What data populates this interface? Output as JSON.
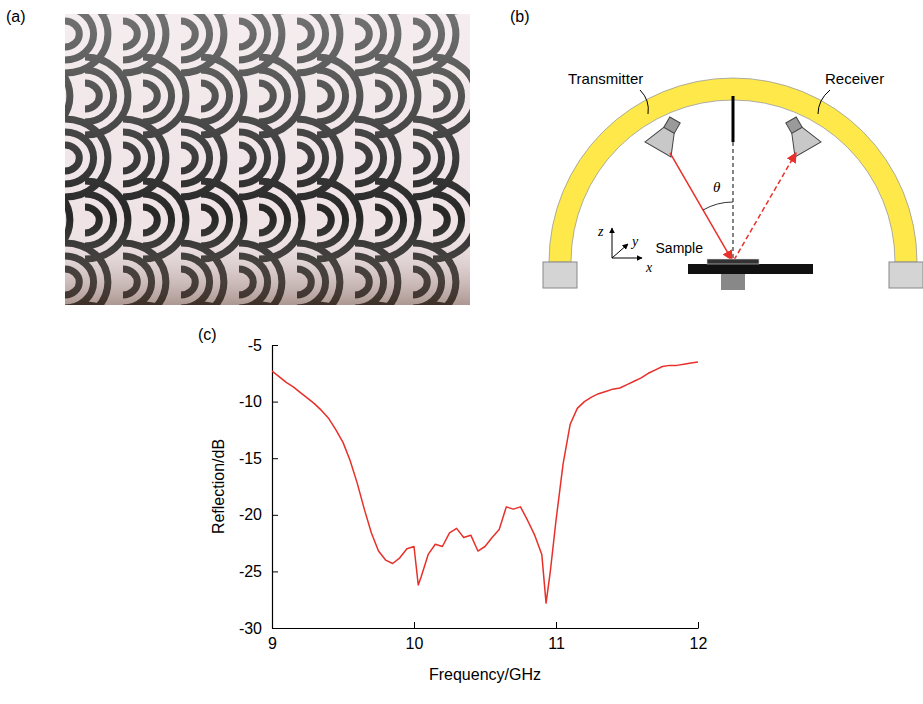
{
  "figure": {
    "panel_labels": [
      "(a)",
      "(b)",
      "(c)"
    ]
  },
  "diagram": {
    "transmitter": "Transmitter",
    "receiver": "Receiver",
    "angle": "θ",
    "sample": "Sample",
    "axes": [
      "x",
      "y",
      "z"
    ]
  },
  "chart_data": {
    "type": "line",
    "x_label": "Frequency/GHz",
    "y_label": "Reflection/dB",
    "color": "#e8302a",
    "xlim": [
      9,
      12
    ],
    "xticks": [
      9,
      10,
      11,
      12
    ],
    "ylim": [
      -30,
      -5
    ],
    "yticks": [
      -30,
      -25,
      -20,
      -15,
      -10,
      -5
    ],
    "x": [
      9.0,
      9.05,
      9.1,
      9.15,
      9.2,
      9.25,
      9.3,
      9.35,
      9.4,
      9.45,
      9.5,
      9.55,
      9.6,
      9.65,
      9.7,
      9.75,
      9.8,
      9.85,
      9.9,
      9.95,
      10.0,
      10.03,
      10.05,
      10.1,
      10.15,
      10.2,
      10.25,
      10.3,
      10.35,
      10.4,
      10.45,
      10.5,
      10.55,
      10.6,
      10.65,
      10.7,
      10.75,
      10.8,
      10.85,
      10.9,
      10.93,
      10.96,
      11.0,
      11.05,
      11.1,
      11.15,
      11.2,
      11.25,
      11.3,
      11.35,
      11.4,
      11.45,
      11.5,
      11.55,
      11.6,
      11.65,
      11.7,
      11.75,
      11.8,
      11.85,
      11.9,
      11.95,
      12.0
    ],
    "values": [
      -7.3,
      -7.8,
      -8.3,
      -8.7,
      -9.2,
      -9.7,
      -10.2,
      -10.8,
      -11.5,
      -12.5,
      -13.6,
      -15.2,
      -17.2,
      -19.5,
      -21.6,
      -23.2,
      -24.0,
      -24.3,
      -23.8,
      -23.0,
      -22.8,
      -26.2,
      -25.5,
      -23.5,
      -22.6,
      -22.8,
      -21.6,
      -21.2,
      -22.0,
      -21.8,
      -23.2,
      -22.8,
      -22.0,
      -21.3,
      -19.3,
      -19.5,
      -19.3,
      -20.5,
      -21.8,
      -23.5,
      -27.8,
      -25.0,
      -20.5,
      -15.5,
      -12.0,
      -10.6,
      -10.0,
      -9.6,
      -9.3,
      -9.1,
      -8.9,
      -8.8,
      -8.5,
      -8.2,
      -7.9,
      -7.5,
      -7.2,
      -6.9,
      -6.8,
      -6.8,
      -6.7,
      -6.6,
      -6.5
    ]
  }
}
